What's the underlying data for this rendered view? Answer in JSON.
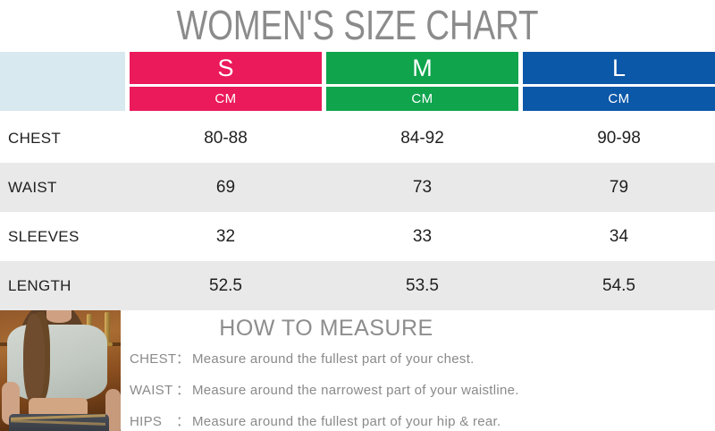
{
  "page": {
    "title": "WOMEN'S SIZE CHART"
  },
  "size_table": {
    "columns": [
      {
        "label": "S",
        "unit": "CM",
        "color": "#ea1a5b"
      },
      {
        "label": "M",
        "unit": "CM",
        "color": "#10a44d"
      },
      {
        "label": "L",
        "unit": "CM",
        "color": "#0b57a8"
      }
    ],
    "rows": [
      {
        "label": "CHEST",
        "values": [
          "80-88",
          "84-92",
          "90-98"
        ]
      },
      {
        "label": "WAIST",
        "values": [
          "69",
          "73",
          "79"
        ]
      },
      {
        "label": "SLEEVES",
        "values": [
          "32",
          "33",
          "34"
        ]
      },
      {
        "label": "LENGTH",
        "values": [
          "52.5",
          "53.5",
          "54.5"
        ]
      }
    ]
  },
  "how_to_measure": {
    "title": "HOW TO MEASURE",
    "colon": "：",
    "items": [
      {
        "label": "CHEST",
        "text": "Measure around the fullest part of your chest."
      },
      {
        "label": "WAIST",
        "text": "Measure around the narrowest part of your waistline."
      },
      {
        "label": "HIPS",
        "text": "Measure around the fullest part of your hip & rear."
      }
    ]
  },
  "colors": {
    "title_gray": "#8b8b8b",
    "size_s_pink": "#ea1a5b",
    "size_m_green": "#10a44d",
    "size_l_blue": "#0b57a8",
    "blank_header_cell": "#d8e9f0",
    "alt_row_gray": "#e9e9e9",
    "body_text": "#1f1f1f",
    "measure_text_gray": "#8a8a8a"
  }
}
